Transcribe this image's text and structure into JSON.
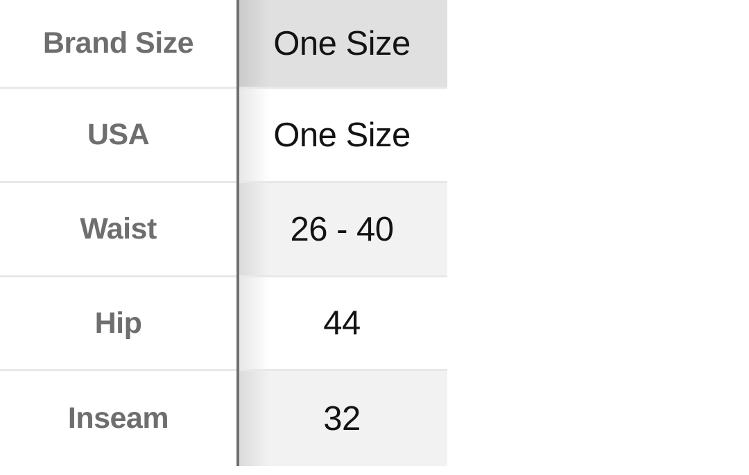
{
  "size_chart": {
    "rows": [
      {
        "label": "Brand Size",
        "value": "One Size",
        "shade": "selected",
        "is_column_header": true
      },
      {
        "label": "USA",
        "value": "One Size",
        "shade": "none",
        "is_column_header": false
      },
      {
        "label": "Waist",
        "value": "26 - 40",
        "shade": "light",
        "is_column_header": false
      },
      {
        "label": "Hip",
        "value": "44",
        "shade": "none",
        "is_column_header": false
      },
      {
        "label": "Inseam",
        "value": "32",
        "shade": "light",
        "is_column_header": false
      }
    ],
    "colors": {
      "selected_cell_bg": "#e0e0e0",
      "alt_cell_bg": "#f2f2f2",
      "row_border": "#e8e8e8",
      "column_divider": "#6f6f6f",
      "label_text": "#6e6e6e",
      "value_text": "#131313"
    }
  }
}
